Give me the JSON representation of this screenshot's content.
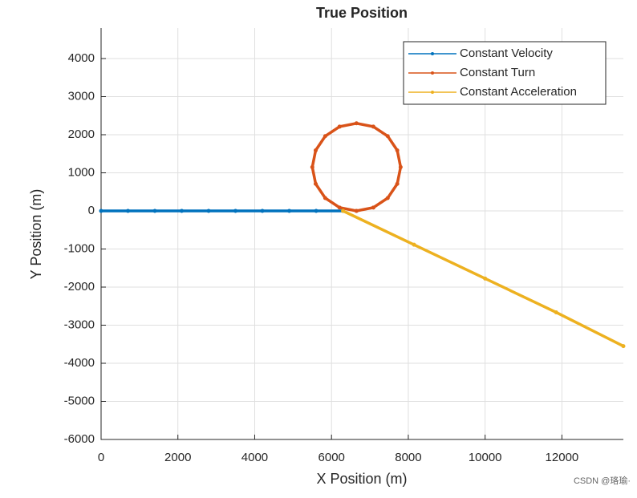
{
  "chart_data": {
    "type": "line",
    "title": "True Position",
    "x_label": "X Position (m)",
    "y_label": "Y Position (m)",
    "xlim": [
      0,
      13600
    ],
    "ylim": [
      -6000,
      4800
    ],
    "xticks": [
      0,
      2000,
      4000,
      6000,
      8000,
      10000,
      12000
    ],
    "yticks": [
      -6000,
      -5000,
      -4000,
      -3000,
      -2000,
      -1000,
      0,
      1000,
      2000,
      3000,
      4000
    ],
    "grid": true,
    "legend": "top-right",
    "series": [
      {
        "name": "Constant Velocity",
        "color": "#0072bd",
        "x": [
          0,
          700,
          1400,
          2100,
          2800,
          3500,
          4200,
          4900,
          5600,
          6300
        ],
        "values": [
          0,
          0,
          0,
          0,
          0,
          0,
          0,
          0,
          0,
          0
        ]
      },
      {
        "name": "Constant Turn",
        "color": "#d95319",
        "x": [
          6650,
          7090,
          7463,
          7712,
          7800,
          7712,
          7463,
          7090,
          6650,
          6210,
          5837,
          5588,
          5500,
          5588,
          5837,
          6210,
          6650
        ],
        "values": [
          0,
          88,
          337,
          710,
          1150,
          1590,
          1963,
          2212,
          2300,
          2212,
          1963,
          1590,
          1150,
          710,
          337,
          88,
          0
        ]
      },
      {
        "name": "Constant Acceleration",
        "color": "#edb120",
        "x": [
          6300,
          8150,
          10000,
          11850,
          13600
        ],
        "values": [
          0,
          -888,
          -1775,
          -2663,
          -3550
        ]
      }
    ],
    "watermark": "CSDN @珞瑜·"
  }
}
